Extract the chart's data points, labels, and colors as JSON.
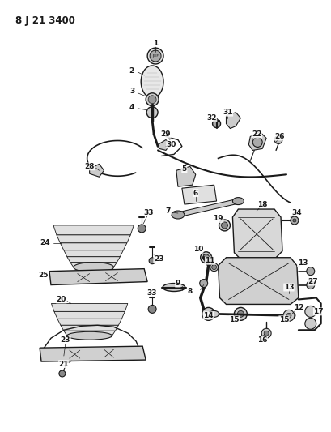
{
  "title": "8 J 21 3400",
  "bg": "#ffffff",
  "lc": "#1a1a1a",
  "fig_w": 4.09,
  "fig_h": 5.33,
  "dpi": 100
}
